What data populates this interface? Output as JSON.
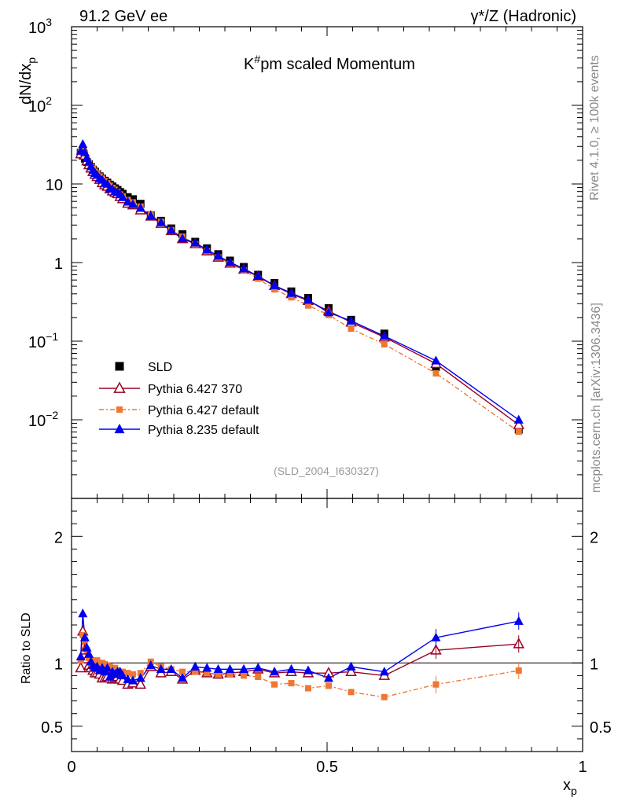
{
  "header": {
    "left": "91.2 GeV ee",
    "right": "γ*/Z (Hadronic)"
  },
  "side_labels": {
    "rivet": "Rivet 4.1.0, ≥ 100k events",
    "mcplots": "mcplots.cern.ch [arXiv:1306.3436]"
  },
  "chart_data": {
    "type": "scatter",
    "title": "K#pm scaled Momentum",
    "title_main": "K",
    "title_sup": "#",
    "title_rest": "pm scaled Momentum",
    "analysis_tag": "(SLD_2004_I630327)",
    "xlabel": "x",
    "xlabel_sub": "p",
    "ylabel": "dN/dx",
    "ylabel_sub": "p",
    "ratio_ylabel": "Ratio to SLD",
    "xlim": [
      0,
      1
    ],
    "ylim_log": [
      0.001,
      1000
    ],
    "ratio_ylim": [
      0.3,
      2.3
    ],
    "x_ticks": [
      "0",
      "0.5",
      "1"
    ],
    "y_ticks": [
      "10^-2",
      "10^-1",
      "1",
      "10",
      "10^2",
      "10^3"
    ],
    "ratio_ticks": [
      "0.5",
      "1",
      "2"
    ],
    "x": [
      0.018,
      0.022,
      0.026,
      0.03,
      0.034,
      0.038,
      0.042,
      0.046,
      0.05,
      0.055,
      0.06,
      0.065,
      0.07,
      0.075,
      0.08,
      0.085,
      0.09,
      0.095,
      0.1,
      0.11,
      0.12,
      0.135,
      0.155,
      0.175,
      0.195,
      0.217,
      0.242,
      0.265,
      0.287,
      0.31,
      0.337,
      0.365,
      0.397,
      0.43,
      0.463,
      0.503,
      0.547,
      0.612,
      0.713,
      0.875
    ],
    "series": [
      {
        "name": "SLD",
        "color": "#000000",
        "marker": "square",
        "values": [
          25.0,
          23.0,
          21.0,
          19.0,
          17.8,
          16.5,
          15.2,
          14.3,
          13.4,
          12.5,
          11.7,
          11.0,
          10.4,
          9.8,
          9.3,
          8.8,
          8.4,
          7.9,
          7.5,
          6.8,
          6.4,
          5.6,
          4.0,
          3.4,
          2.72,
          2.3,
          1.84,
          1.52,
          1.28,
          1.06,
          0.88,
          0.7,
          0.55,
          0.43,
          0.355,
          0.263,
          0.187,
          0.125,
          0.047,
          0.0075
        ]
      },
      {
        "name": "Pythia 6.427 370",
        "color": "#990022",
        "marker": "open-triangle",
        "ratios": [
          0.96,
          1.25,
          1.1,
          1.03,
          0.98,
          0.96,
          0.94,
          0.92,
          0.92,
          0.91,
          0.88,
          0.88,
          0.89,
          0.88,
          0.87,
          0.88,
          0.89,
          0.87,
          0.86,
          0.83,
          0.84,
          0.83,
          0.97,
          0.92,
          0.93,
          0.87,
          0.94,
          0.92,
          0.91,
          0.92,
          0.93,
          0.95,
          0.92,
          0.93,
          0.92,
          0.92,
          0.93,
          0.9,
          1.1,
          1.15
        ]
      },
      {
        "name": "Pythia 6.427 default",
        "color": "#ee7733",
        "marker": "square",
        "ratios": [
          1.02,
          1.22,
          1.18,
          1.1,
          1.04,
          1.0,
          1.02,
          1.0,
          1.02,
          1.0,
          1.0,
          0.99,
          0.98,
          0.97,
          0.96,
          0.96,
          0.94,
          0.93,
          0.93,
          0.92,
          0.91,
          0.92,
          1.01,
          0.97,
          0.95,
          0.93,
          0.93,
          0.92,
          0.91,
          0.91,
          0.9,
          0.89,
          0.83,
          0.84,
          0.8,
          0.82,
          0.77,
          0.73,
          0.83,
          0.94
        ]
      },
      {
        "name": "Pythia 8.235 default",
        "color": "#0000ee",
        "marker": "filled-triangle",
        "ratios": [
          1.05,
          1.39,
          1.2,
          1.12,
          1.07,
          1.01,
          0.98,
          0.96,
          0.97,
          0.94,
          0.96,
          0.93,
          0.96,
          0.89,
          0.93,
          0.91,
          0.93,
          0.93,
          0.9,
          0.87,
          0.86,
          0.88,
          0.98,
          0.95,
          0.95,
          0.88,
          0.97,
          0.96,
          0.95,
          0.95,
          0.95,
          0.96,
          0.93,
          0.95,
          0.94,
          0.88,
          0.97,
          0.93,
          1.2,
          1.33
        ]
      }
    ]
  }
}
